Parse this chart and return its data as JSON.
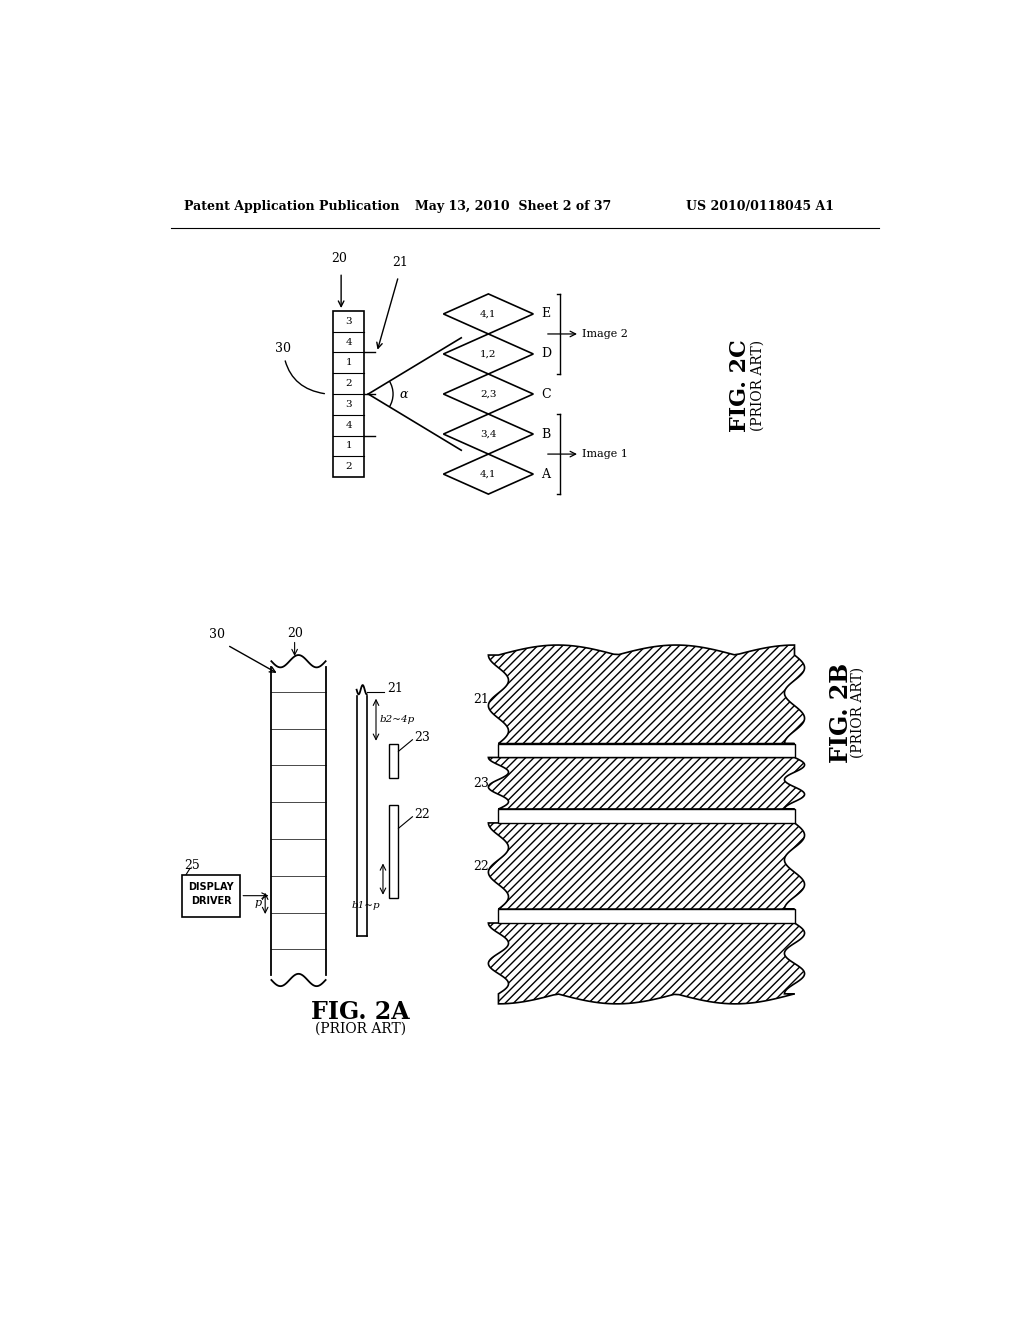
{
  "header_left": "Patent Application Publication",
  "header_center": "May 13, 2010  Sheet 2 of 37",
  "header_right": "US 2010/0118045 A1",
  "bg_color": "#ffffff",
  "line_color": "#000000"
}
